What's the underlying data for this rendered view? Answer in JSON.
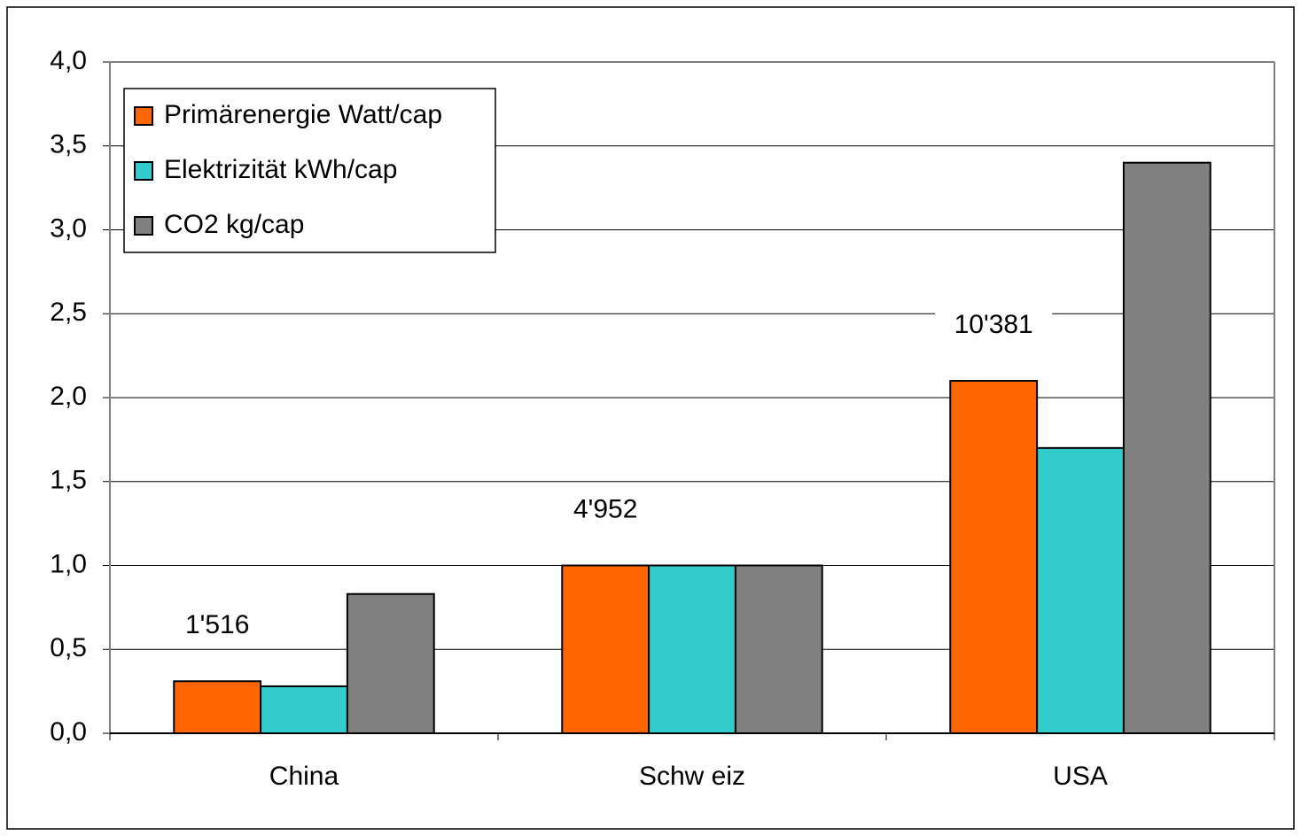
{
  "chart_data": {
    "type": "bar",
    "categories": [
      "China",
      "Schw eiz",
      "USA"
    ],
    "series": [
      {
        "name": "Primärenergie Watt/cap",
        "color": "#ff6600",
        "values": [
          0.31,
          1.0,
          2.1
        ]
      },
      {
        "name": "Elektrizität kWh/cap",
        "color": "#33cccc",
        "values": [
          0.28,
          1.0,
          1.7
        ]
      },
      {
        "name": "CO2 kg/cap",
        "color": "#808080",
        "values": [
          0.83,
          1.0,
          3.4
        ]
      }
    ],
    "annotations": [
      "1'516",
      "4'952",
      "10'381"
    ],
    "ylim": [
      0,
      4
    ],
    "yticks": [
      {
        "value": 0,
        "label": "0,0"
      },
      {
        "value": 0.5,
        "label": "0,5"
      },
      {
        "value": 1,
        "label": "1,0"
      },
      {
        "value": 1.5,
        "label": "1,5"
      },
      {
        "value": 2,
        "label": "2,0"
      },
      {
        "value": 2.5,
        "label": "2,5"
      },
      {
        "value": 3,
        "label": "3,0"
      },
      {
        "value": 3.5,
        "label": "3,5"
      },
      {
        "value": 4,
        "label": "4,0"
      }
    ],
    "grid": true,
    "legend": "upper left"
  }
}
